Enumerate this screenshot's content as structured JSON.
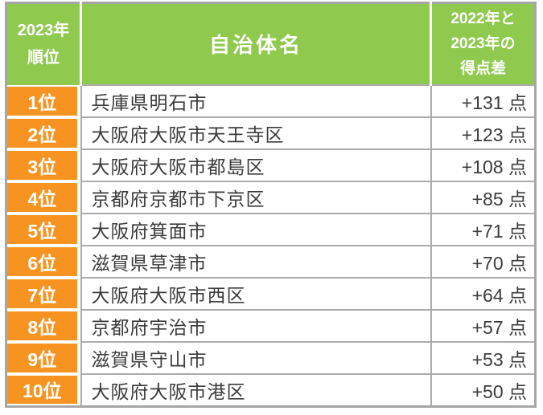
{
  "chart_data": {
    "type": "table",
    "columns": [
      "2023年順位",
      "自治体名",
      "2022年と2023年の得点差"
    ],
    "rows": [
      [
        "1位",
        "兵庫県明石市",
        "+131 点"
      ],
      [
        "2位",
        "大阪府大阪市天王寺区",
        "+123 点"
      ],
      [
        "3位",
        "大阪府大阪市都島区",
        "+108 点"
      ],
      [
        "4位",
        "京都府京都市下京区",
        "+85 点"
      ],
      [
        "5位",
        "大阪府箕面市",
        "+71 点"
      ],
      [
        "6位",
        "滋賀県草津市",
        "+70 点"
      ],
      [
        "7位",
        "大阪府大阪市西区",
        "+64 点"
      ],
      [
        "8位",
        "京都府宇治市",
        "+57 点"
      ],
      [
        "9位",
        "滋賀県守山市",
        "+53 点"
      ],
      [
        "10位",
        "大阪府大阪市港区",
        "+50 点"
      ]
    ],
    "score_diff_points": [
      131,
      123,
      108,
      85,
      71,
      70,
      64,
      57,
      53,
      50
    ]
  },
  "header": {
    "rank": "2023年\n順位",
    "name": "自治体名",
    "diff": "2022年と\n2023年の\n得点差"
  },
  "colors": {
    "header_green": "#8FC94E",
    "rank_orange": "#F79421",
    "border_gray": "#A6A6A6",
    "inner_line_gray": "#ABABAB",
    "text_dark": "#3B3B3B",
    "header_text": "#FFFFFF"
  }
}
